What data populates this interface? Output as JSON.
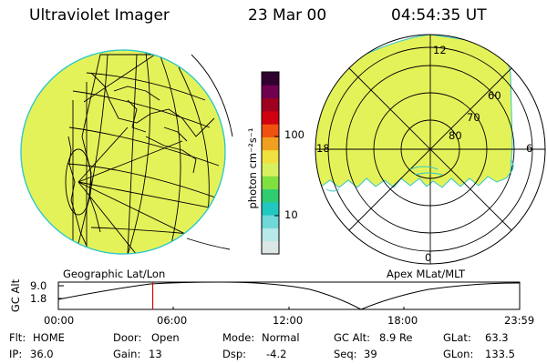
{
  "header": {
    "title": "Ultraviolet Imager",
    "date": "23 Mar 00",
    "time": "04:54:35 UT"
  },
  "colorbar": {
    "label": "photon cm⁻²s⁻¹",
    "ticks": [
      "100",
      "10"
    ],
    "colors": [
      "#dde6e6",
      "#b8e8e8",
      "#70d8d8",
      "#20c8c0",
      "#30cc70",
      "#80e040",
      "#d8f060",
      "#f0e040",
      "#f0a020",
      "#f05010",
      "#d00010",
      "#a00020",
      "#700050",
      "#300030"
    ]
  },
  "left_panel": {
    "caption": "Geographic Lat/Lon",
    "fill_color": "#e4f25a"
  },
  "right_panel": {
    "caption": "Apex MLat/MLT",
    "lat_labels": [
      "60",
      "70",
      "80"
    ],
    "mlt_labels": [
      "12",
      "18",
      "6",
      "0"
    ],
    "fill_color": "#e4f25a"
  },
  "altitude_plot": {
    "ylabel": "GC Alt",
    "yticks": [
      "9.0",
      "1.8"
    ],
    "xticks": [
      "00:00",
      "06:00",
      "12:00",
      "18:00",
      "23:59"
    ],
    "marker_time_hours": 4.91,
    "marker_color": "#dd0000"
  },
  "info": {
    "rows": [
      [
        {
          "label": "Flt:",
          "value": "HOME"
        },
        {
          "label": "Door:",
          "value": "Open"
        },
        {
          "label": "Mode:",
          "value": "Normal"
        },
        {
          "label": "GC Alt:",
          "value": "8.9 Re"
        },
        {
          "label": "GLat:",
          "value": "63.3"
        }
      ],
      [
        {
          "label": "IP:",
          "value": "36.0"
        },
        {
          "label": "Gain:",
          "value": "13"
        },
        {
          "label": "Dsp:",
          "value": "-4.2"
        },
        {
          "label": "Seq:",
          "value": "39"
        },
        {
          "label": "GLon:",
          "value": "133.5"
        }
      ]
    ]
  }
}
